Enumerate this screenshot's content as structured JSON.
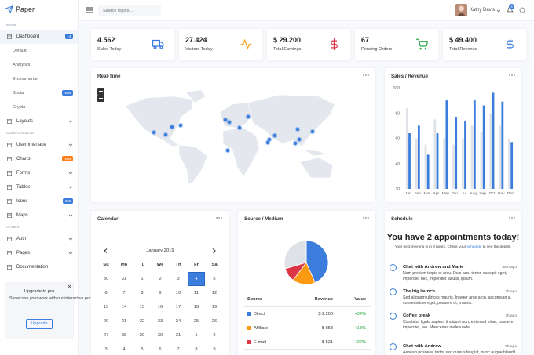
{
  "brand": "Paper",
  "sidebar": {
    "sections": [
      {
        "label": "MAIN",
        "items": [
          {
            "label": "Dashboard",
            "badge": "14",
            "badge_color": "#3b7ddd",
            "active": true,
            "children": [
              {
                "label": "Default"
              },
              {
                "label": "Analytics"
              },
              {
                "label": "E-commerce"
              },
              {
                "label": "Social",
                "badge": "New",
                "badge_color": "#3b7ddd"
              },
              {
                "label": "Crypto"
              }
            ]
          },
          {
            "label": "Layouts",
            "expandable": true
          }
        ]
      },
      {
        "label": "COMPONENTS",
        "items": [
          {
            "label": "User Interface",
            "expandable": true
          },
          {
            "label": "Charts",
            "badge": "New",
            "badge_color": "#fd7e14"
          },
          {
            "label": "Forms",
            "expandable": true
          },
          {
            "label": "Tables",
            "expandable": true
          },
          {
            "label": "Icons",
            "badge": "650",
            "badge_color": "#3b7ddd"
          },
          {
            "label": "Maps",
            "expandable": true
          }
        ]
      },
      {
        "label": "OTHER",
        "items": [
          {
            "label": "Auth",
            "expandable": true
          },
          {
            "label": "Pages",
            "expandable": true
          },
          {
            "label": "Documentation"
          }
        ]
      }
    ],
    "upgrade": {
      "title": "Upgrade to pro",
      "text": "Showcase your work with our interactive portfolio on your custom domain",
      "button": "Upgrade"
    }
  },
  "topbar": {
    "search_placeholder": "Search topics...",
    "user": "Kathy Davis",
    "notifications": "4"
  },
  "stats": [
    {
      "value": "4.562",
      "label": "Sales Today",
      "color": "#3b7ddd"
    },
    {
      "value": "27.424",
      "label": "Visitors Today",
      "color": "#f5a623"
    },
    {
      "value": "$ 29.200",
      "label": "Total Earnings",
      "color": "#dc3545"
    },
    {
      "value": "67",
      "label": "Pending Orders",
      "color": "#28a745"
    },
    {
      "value": "$ 49.400",
      "label": "Total Revenue",
      "color": "#3b7ddd"
    }
  ],
  "realtime": {
    "title": "Real-Time"
  },
  "sales_revenue": {
    "title": "Sales / Revenue",
    "type": "bar",
    "categories": [
      "Jan",
      "Feb",
      "Mar",
      "Apr",
      "May",
      "Jun",
      "Jul",
      "Aug",
      "Sep",
      "Oct",
      "Nov",
      "Dec"
    ],
    "series": [
      {
        "color": "#dfe3e8",
        "values": [
          84,
          60,
          55,
          75,
          60,
          55,
          60,
          70,
          65,
          80,
          70,
          60
        ]
      },
      {
        "color": "#3b7ddd",
        "values": [
          64,
          70,
          47,
          64,
          90,
          77,
          74,
          90,
          86,
          96,
          89,
          57
        ]
      }
    ],
    "ylim": [
      20,
      100
    ],
    "yticks": [
      20,
      40,
      60,
      80,
      100
    ]
  },
  "calendar": {
    "title": "Calendar",
    "month": "January 2019",
    "weekdays": [
      "Su",
      "Mo",
      "Tu",
      "We",
      "Th",
      "Fr",
      "Sa"
    ],
    "weeks": [
      [
        30,
        31,
        1,
        2,
        3,
        4,
        5
      ],
      [
        6,
        7,
        8,
        9,
        10,
        11,
        12
      ],
      [
        13,
        14,
        15,
        16,
        17,
        18,
        19
      ],
      [
        20,
        21,
        22,
        23,
        24,
        25,
        26
      ],
      [
        27,
        28,
        29,
        30,
        31,
        1,
        2
      ],
      [
        3,
        4,
        5,
        6,
        7,
        8,
        9
      ]
    ],
    "selected_day": 4
  },
  "source_medium": {
    "title": "Source / Medium",
    "pie": {
      "values": [
        2206,
        853,
        521,
        1500
      ],
      "colors": [
        "#3b7ddd",
        "#fd9a14",
        "#dc3545",
        "#dee2e6"
      ]
    },
    "columns": [
      "Source",
      "Revenue",
      "Value"
    ],
    "rows": [
      {
        "source": "Direct",
        "revenue": "$ 2.206",
        "value": "+34%",
        "color": "#3b7ddd"
      },
      {
        "source": "Affiliate",
        "revenue": "$ 853",
        "value": "+13%",
        "color": "#fd9a14"
      },
      {
        "source": "E-mail",
        "revenue": "$ 521",
        "value": "+22%",
        "color": "#dc3545"
      }
    ]
  },
  "schedule": {
    "title": "Schedule",
    "heading": "You have 2 appointments today!",
    "subtitle_before": "Your next meeting is in 3 hours. Check your ",
    "subtitle_link": "schedule",
    "subtitle_after": " to see the details.",
    "items": [
      {
        "title": "Chat with Andrew and Marie",
        "time": "45m ago",
        "text": "Nam pretium turpis et arcu. Duis arcu tortor, suscipit eget, imperdiet nec, imperdiet iaculis, ipsum."
      },
      {
        "title": "The big launch",
        "time": "2h ago",
        "text": "Sed aliquam ultrices mauris. Integer ante arcu, accumsan a, consectetuer eget, posuere ut, mauris."
      },
      {
        "title": "Coffee break",
        "time": "3h ago",
        "text": "Curabitur ligula sapien, tincidunt non, euismod vitae, posuere imperdiet, leo. Maecenas malesuada."
      },
      {
        "title": "Chat with Andrew",
        "time": "5h ago",
        "text": "Aenean posuere, tortor sed cursus feugiat, nunc augue blandit nunc."
      }
    ]
  }
}
